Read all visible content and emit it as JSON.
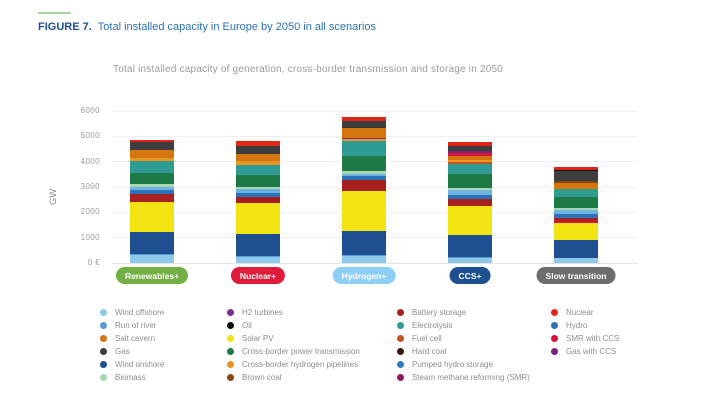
{
  "figure_header": {
    "label": "FIGURE 7.",
    "title": "Total installed capacity in Europe by 2050 in all scenarios"
  },
  "chart_data": {
    "type": "bar",
    "variant": "stacked",
    "title": "Total installed capacity of generation, cross-border transmission and storage in 2050",
    "ylabel": "GW",
    "ylim": [
      0,
      6000
    ],
    "grid": true,
    "yticks": [
      {
        "value": 6000,
        "label": "6000"
      },
      {
        "value": 5000,
        "label": "5000"
      },
      {
        "value": 4000,
        "label": "4000"
      },
      {
        "value": 3000,
        "label": "3000"
      },
      {
        "value": 2000,
        "label": "2000"
      },
      {
        "value": 1000,
        "label": "1000"
      },
      {
        "value": 0,
        "label": "0 €"
      }
    ],
    "categories": [
      "Renewables+",
      "Nuclear+",
      "Hydrogen+",
      "CCS+",
      "Slow transition"
    ],
    "scenarios": [
      {
        "label": "Renewables+",
        "pill_color": "#72b043",
        "total_gw": 4870,
        "segments": [
          {
            "name": "Wind offshore",
            "color": "#8ec9ea",
            "value": 300
          },
          {
            "name": "Run of river",
            "color": "#5b9bd5",
            "value": 40
          },
          {
            "name": "Wind onshore",
            "color": "#1d4f91",
            "value": 870
          },
          {
            "name": "Solar PV",
            "color": "#f2e412",
            "value": 1200
          },
          {
            "name": "Battery storage",
            "color": "#a6201f",
            "value": 300
          },
          {
            "name": "Hydro",
            "color": "#2b72b8",
            "value": 180
          },
          {
            "name": "Pumped hydro storage",
            "color": "#6fb3e0",
            "value": 110
          },
          {
            "name": "Biomass",
            "color": "#a9d7b4",
            "value": 110
          },
          {
            "name": "Cross-border power transmission",
            "color": "#1d7a47",
            "value": 430
          },
          {
            "name": "Electrolysis",
            "color": "#2f9b94",
            "value": 480
          },
          {
            "name": "Cross-border hydrogen pipelines",
            "color": "#e8961f",
            "value": 110
          },
          {
            "name": "Salt cavern",
            "color": "#d4750e",
            "value": 320
          },
          {
            "name": "Gas",
            "color": "#3d3d3d",
            "value": 310
          },
          {
            "name": "Nuclear",
            "color": "#e02717",
            "value": 110
          }
        ]
      },
      {
        "label": "Nuclear+",
        "pill_color": "#e01b3b",
        "total_gw": 4810,
        "segments": [
          {
            "name": "Wind offshore",
            "color": "#8ec9ea",
            "value": 250
          },
          {
            "name": "Run of river",
            "color": "#5b9bd5",
            "value": 40
          },
          {
            "name": "Wind onshore",
            "color": "#1d4f91",
            "value": 870
          },
          {
            "name": "Solar PV",
            "color": "#f2e412",
            "value": 1200
          },
          {
            "name": "Battery storage",
            "color": "#a6201f",
            "value": 260
          },
          {
            "name": "Hydro",
            "color": "#2b72b8",
            "value": 160
          },
          {
            "name": "Pumped hydro storage",
            "color": "#6fb3e0",
            "value": 150
          },
          {
            "name": "Biomass",
            "color": "#a9d7b4",
            "value": 80
          },
          {
            "name": "Cross-border power transmission",
            "color": "#1d7a47",
            "value": 480
          },
          {
            "name": "Electrolysis",
            "color": "#2f9b94",
            "value": 390
          },
          {
            "name": "Cross-border hydrogen pipelines",
            "color": "#e8961f",
            "value": 130
          },
          {
            "name": "Salt cavern",
            "color": "#d4750e",
            "value": 300
          },
          {
            "name": "Gas",
            "color": "#3d3d3d",
            "value": 310
          },
          {
            "name": "Nuclear",
            "color": "#e02717",
            "value": 190
          }
        ]
      },
      {
        "label": "Hydrogen+",
        "pill_color": "#8ed0f5",
        "total_gw": 5760,
        "segments": [
          {
            "name": "Wind offshore",
            "color": "#8ec9ea",
            "value": 260
          },
          {
            "name": "Run of river",
            "color": "#5b9bd5",
            "value": 50
          },
          {
            "name": "Wind onshore",
            "color": "#1d4f91",
            "value": 950
          },
          {
            "name": "Solar PV",
            "color": "#f2e412",
            "value": 1570
          },
          {
            "name": "Battery storage",
            "color": "#a6201f",
            "value": 430
          },
          {
            "name": "Hydro",
            "color": "#2b72b8",
            "value": 160
          },
          {
            "name": "Pumped hydro storage",
            "color": "#6fb3e0",
            "value": 110
          },
          {
            "name": "Biomass",
            "color": "#a9d7b4",
            "value": 90
          },
          {
            "name": "Cross-border power transmission",
            "color": "#1d7a47",
            "value": 590
          },
          {
            "name": "Electrolysis",
            "color": "#2f9b94",
            "value": 590
          },
          {
            "name": "Cross-border hydrogen pipelines",
            "color": "#e8961f",
            "value": 90
          },
          {
            "name": "H2 turbines",
            "color": "#7b2d8e",
            "value": 60
          },
          {
            "name": "Salt cavern",
            "color": "#d4750e",
            "value": 390
          },
          {
            "name": "Gas",
            "color": "#3d3d3d",
            "value": 270
          },
          {
            "name": "Nuclear",
            "color": "#e02717",
            "value": 150
          }
        ]
      },
      {
        "label": "CCS+",
        "pill_color": "#1d4f91",
        "total_gw": 4790,
        "segments": [
          {
            "name": "Wind offshore",
            "color": "#8ec9ea",
            "value": 200
          },
          {
            "name": "Run of river",
            "color": "#5b9bd5",
            "value": 40
          },
          {
            "name": "Wind onshore",
            "color": "#1d4f91",
            "value": 850
          },
          {
            "name": "Solar PV",
            "color": "#f2e412",
            "value": 1150
          },
          {
            "name": "Battery storage",
            "color": "#a6201f",
            "value": 300
          },
          {
            "name": "Hydro",
            "color": "#2b72b8",
            "value": 160
          },
          {
            "name": "Pumped hydro storage",
            "color": "#6fb3e0",
            "value": 170
          },
          {
            "name": "Biomass",
            "color": "#a9d7b4",
            "value": 90
          },
          {
            "name": "Cross-border power transmission",
            "color": "#1d7a47",
            "value": 550
          },
          {
            "name": "Electrolysis",
            "color": "#2f9b94",
            "value": 390
          },
          {
            "name": "Fuel cell",
            "color": "#c0531e",
            "value": 80
          },
          {
            "name": "Cross-border hydrogen pipelines",
            "color": "#e8961f",
            "value": 90
          },
          {
            "name": "Salt cavern",
            "color": "#d4750e",
            "value": 170
          },
          {
            "name": "SMR with CCS",
            "color": "#d6123f",
            "value": 90
          },
          {
            "name": "Gas with CCS",
            "color": "#7a2482",
            "value": 90
          },
          {
            "name": "Gas",
            "color": "#3d3d3d",
            "value": 210
          },
          {
            "name": "Nuclear",
            "color": "#e02717",
            "value": 160
          }
        ]
      },
      {
        "label": "Slow transition",
        "pill_color": "#6d6d6d",
        "total_gw": 3780,
        "segments": [
          {
            "name": "Wind offshore",
            "color": "#8ec9ea",
            "value": 190
          },
          {
            "name": "Wind onshore",
            "color": "#1d4f91",
            "value": 700
          },
          {
            "name": "Solar PV",
            "color": "#f2e412",
            "value": 680
          },
          {
            "name": "SMR with CCS",
            "color": "#d6123f",
            "value": 100
          },
          {
            "name": "Battery storage",
            "color": "#a6201f",
            "value": 100
          },
          {
            "name": "Hydro",
            "color": "#2b72b8",
            "value": 150
          },
          {
            "name": "Pumped hydro storage",
            "color": "#6fb3e0",
            "value": 180
          },
          {
            "name": "Biomass",
            "color": "#a9d7b4",
            "value": 90
          },
          {
            "name": "Cross-border power transmission",
            "color": "#1d7a47",
            "value": 430
          },
          {
            "name": "Electrolysis",
            "color": "#2f9b94",
            "value": 310
          },
          {
            "name": "Salt cavern",
            "color": "#d4750e",
            "value": 240
          },
          {
            "name": "Brown coal",
            "color": "#8a4513",
            "value": 80
          },
          {
            "name": "Gas",
            "color": "#3d3d3d",
            "value": 380
          },
          {
            "name": "Oil",
            "color": "#0d0d0d",
            "value": 40
          },
          {
            "name": "Nuclear",
            "color": "#e02717",
            "value": 110
          }
        ]
      }
    ],
    "legend_position": "bottom",
    "legend_columns": [
      [
        {
          "label": "Wind offshore",
          "color": "#8ec9ea"
        },
        {
          "label": "Run of river",
          "color": "#5b9bd5"
        },
        {
          "label": "Salt cavern",
          "color": "#d4750e"
        },
        {
          "label": "Gas",
          "color": "#3d3d3d"
        },
        {
          "label": "Wind onshore",
          "color": "#1d4f91"
        },
        {
          "label": "Biomass",
          "color": "#a9d7b4"
        }
      ],
      [
        {
          "label": "H2 turbines",
          "color": "#7b2d8e"
        },
        {
          "label": "Oil",
          "color": "#0d0d0d"
        },
        {
          "label": "Solar PV",
          "color": "#f2e412"
        },
        {
          "label": "Cross-border power transmission",
          "color": "#1d7a47"
        },
        {
          "label": "Cross-border hydrogen pipelines",
          "color": "#e8961f"
        },
        {
          "label": "Brown coal",
          "color": "#8a4513"
        }
      ],
      [
        {
          "label": "Battery storage",
          "color": "#a6201f"
        },
        {
          "label": "Electrolysis",
          "color": "#2f9b94"
        },
        {
          "label": "Fuel cell",
          "color": "#c0531e"
        },
        {
          "label": "Hard coal",
          "color": "#3a150b"
        },
        {
          "label": "Pumped hydro storage",
          "color": "#2e79c0"
        },
        {
          "label": "Steam methane reforming (SMR)",
          "color": "#94185f"
        }
      ],
      [
        {
          "label": "Nuclear",
          "color": "#e02717"
        },
        {
          "label": "Hydro",
          "color": "#2b72b8"
        },
        {
          "label": "SMR with CCS",
          "color": "#d6123f"
        },
        {
          "label": "Gas with CCS",
          "color": "#7a2482"
        }
      ]
    ]
  }
}
